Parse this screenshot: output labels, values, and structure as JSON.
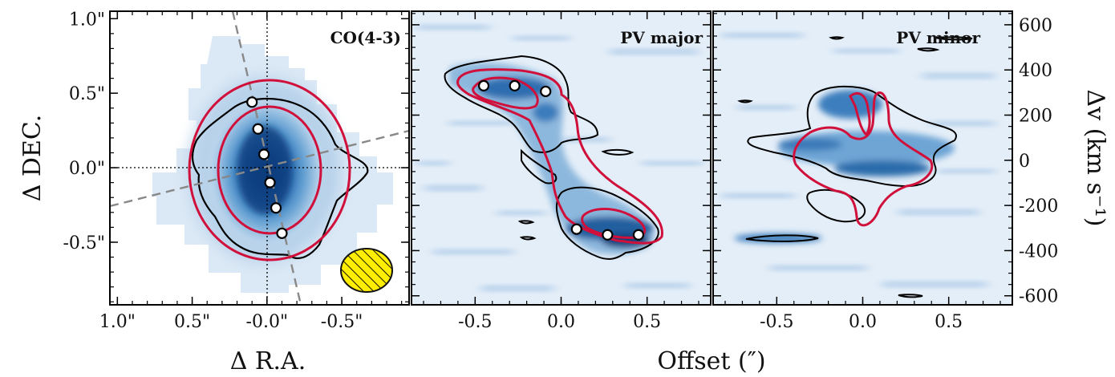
{
  "chart_data": [
    {
      "type": "scatter",
      "panel": "moment-map",
      "label": "CO(4-3)",
      "xlabel": "Δ R.A.",
      "ylabel": "Δ DEC.",
      "xlim": [
        1.05,
        -0.95
      ],
      "ylim": [
        -0.92,
        1.05
      ],
      "x_ticks": [
        1.0,
        0.5,
        0.0,
        -0.5
      ],
      "x_tick_labels": [
        "1.0\"",
        "0.5\"",
        "-0.0\"",
        "-0.5\""
      ],
      "y_ticks": [
        1.0,
        0.5,
        0.0,
        -0.5
      ],
      "y_tick_labels": [
        "1.0\"",
        "0.5\"",
        "0.0\"",
        "-0.5\""
      ],
      "colormap": "Blues",
      "emission_peak": {
        "x": 0.0,
        "y": 0.0
      },
      "points": [
        {
          "x": 0.1,
          "y": 0.44
        },
        {
          "x": 0.06,
          "y": 0.26
        },
        {
          "x": 0.02,
          "y": 0.09
        },
        {
          "x": -0.02,
          "y": -0.1
        },
        {
          "x": -0.06,
          "y": -0.27
        },
        {
          "x": -0.1,
          "y": -0.44
        }
      ],
      "ellipses": [
        {
          "cx": 0.0,
          "cy": 0.0,
          "rx": 0.53,
          "ry": 0.61,
          "color": "#d0103a"
        },
        {
          "cx": 0.0,
          "cy": 0.0,
          "rx": 0.35,
          "ry": 0.43,
          "color": "#d0103a"
        }
      ],
      "major_axis_line": {
        "x": [
          0.25,
          -0.22
        ],
        "y": [
          1.05,
          -0.92
        ]
      },
      "minor_axis_line": {
        "x": [
          1.05,
          -0.95
        ],
        "y": [
          -0.25,
          0.24
        ]
      },
      "beam": {
        "x": -0.65,
        "y": -0.7,
        "rx": 0.17,
        "ry": 0.14,
        "color": "#ffef00"
      },
      "contour_color": "#000000",
      "model_color": "#d0103a"
    },
    {
      "type": "scatter",
      "panel": "pv-major",
      "label": "PV major",
      "xlabel": "Offset (″)",
      "xlim": [
        -0.87,
        0.87
      ],
      "ylim": [
        -640,
        660
      ],
      "x_ticks": [
        -0.5,
        0.0,
        0.5
      ],
      "x_tick_labels": [
        "-0.5",
        "0.0",
        "0.5"
      ],
      "points": [
        {
          "x": -0.45,
          "y": 330
        },
        {
          "x": -0.27,
          "y": 330
        },
        {
          "x": -0.09,
          "y": 305
        },
        {
          "x": 0.09,
          "y": -305
        },
        {
          "x": 0.27,
          "y": -330
        },
        {
          "x": 0.45,
          "y": -330
        }
      ]
    },
    {
      "type": "heatmap",
      "panel": "pv-minor",
      "label": "PV minor",
      "xlabel": "Offset (″)",
      "ylabel": "Δv (km s⁻¹)",
      "xlim": [
        -0.87,
        0.87
      ],
      "ylim": [
        -640,
        660
      ],
      "x_ticks": [
        -0.5,
        0.0,
        0.5
      ],
      "x_tick_labels": [
        "-0.5",
        "0.0",
        "0.5"
      ],
      "y_ticks": [
        600,
        400,
        200,
        0,
        -200,
        -400,
        -600
      ],
      "y_tick_labels": [
        "600",
        "400",
        "200",
        "0",
        "-200",
        "-400",
        "-600"
      ]
    }
  ],
  "shared_xlabel": "Offset (″)"
}
